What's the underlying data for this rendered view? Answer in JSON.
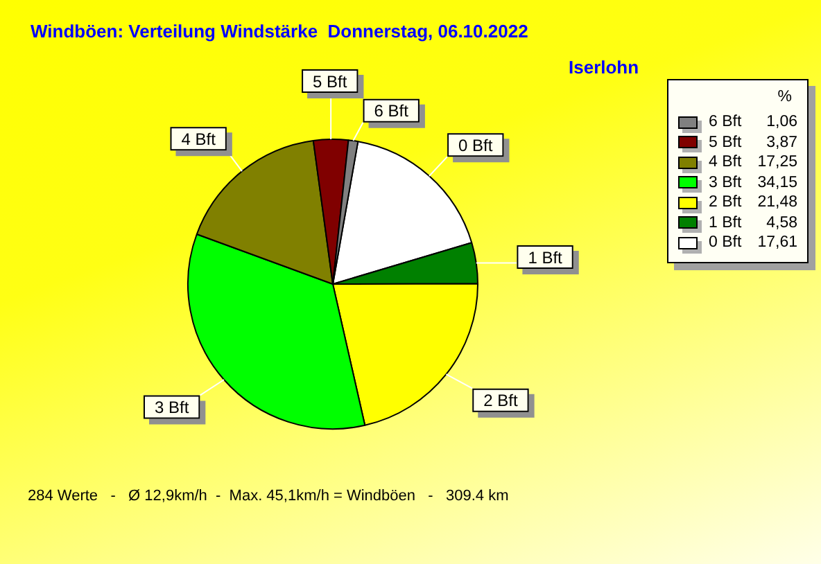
{
  "chart_data": {
    "type": "pie",
    "title": "Windböen: Verteilung Windstärke  Donnerstag, 06.10.2022",
    "subtitle": "Iserlohn",
    "categories": [
      "0 Bft",
      "1 Bft",
      "2 Bft",
      "3 Bft",
      "4 Bft",
      "5 Bft",
      "6 Bft"
    ],
    "values": [
      17.61,
      4.58,
      21.48,
      34.15,
      17.25,
      3.87,
      1.06
    ],
    "value_labels": [
      "17,61",
      "4,58",
      "21,48",
      "34,15",
      "17,25",
      "3,87",
      "1,06"
    ],
    "colors": [
      "#ffffff",
      "#008000",
      "#ffff00",
      "#00ff00",
      "#808000",
      "#800000",
      "#808080"
    ],
    "legend_title": "%",
    "legend": "right",
    "annotations": [
      "284 Werte   -   Ø 12,9km/h  -  Max. 45,1km/h = Windböen   -   309.4 km"
    ]
  }
}
